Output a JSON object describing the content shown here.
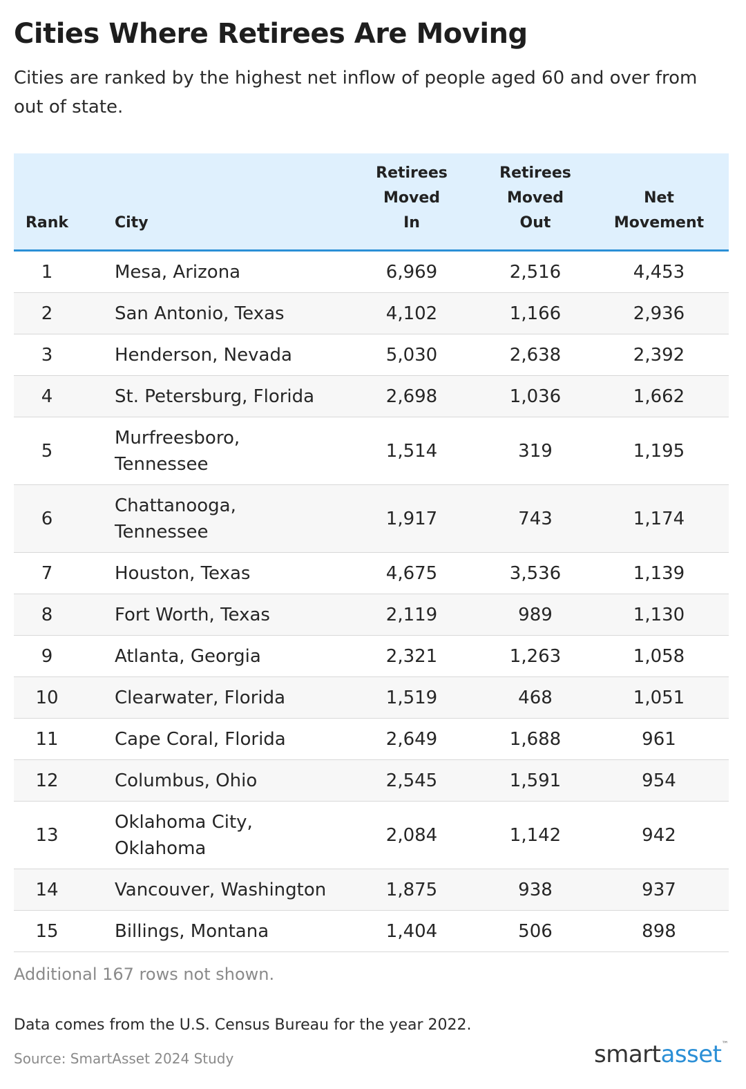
{
  "header": {
    "title": "Cities Where Retirees Are Moving",
    "subtitle": "Cities are ranked by the highest net inflow of people aged 60 and over from out of state."
  },
  "chart_data": {
    "type": "table",
    "columns": [
      {
        "key": "rank",
        "lines": [
          "Rank"
        ]
      },
      {
        "key": "city",
        "lines": [
          "City"
        ]
      },
      {
        "key": "moved_in",
        "lines": [
          "Retirees",
          "Moved",
          "In"
        ]
      },
      {
        "key": "moved_out",
        "lines": [
          "Retirees",
          "Moved",
          "Out"
        ]
      },
      {
        "key": "net",
        "lines": [
          "Net",
          "Movement"
        ]
      }
    ],
    "rows": [
      {
        "rank": "1",
        "city": [
          "Mesa, Arizona"
        ],
        "moved_in": "6,969",
        "moved_out": "2,516",
        "net": "4,453"
      },
      {
        "rank": "2",
        "city": [
          "San Antonio, Texas"
        ],
        "moved_in": "4,102",
        "moved_out": "1,166",
        "net": "2,936"
      },
      {
        "rank": "3",
        "city": [
          "Henderson, Nevada"
        ],
        "moved_in": "5,030",
        "moved_out": "2,638",
        "net": "2,392"
      },
      {
        "rank": "4",
        "city": [
          "St. Petersburg, Florida"
        ],
        "moved_in": "2,698",
        "moved_out": "1,036",
        "net": "1,662"
      },
      {
        "rank": "5",
        "city": [
          "Murfreesboro,",
          "Tennessee"
        ],
        "moved_in": "1,514",
        "moved_out": "319",
        "net": "1,195"
      },
      {
        "rank": "6",
        "city": [
          "Chattanooga,",
          "Tennessee"
        ],
        "moved_in": "1,917",
        "moved_out": "743",
        "net": "1,174"
      },
      {
        "rank": "7",
        "city": [
          "Houston, Texas"
        ],
        "moved_in": "4,675",
        "moved_out": "3,536",
        "net": "1,139"
      },
      {
        "rank": "8",
        "city": [
          "Fort Worth, Texas"
        ],
        "moved_in": "2,119",
        "moved_out": "989",
        "net": "1,130"
      },
      {
        "rank": "9",
        "city": [
          "Atlanta, Georgia"
        ],
        "moved_in": "2,321",
        "moved_out": "1,263",
        "net": "1,058"
      },
      {
        "rank": "10",
        "city": [
          "Clearwater, Florida"
        ],
        "moved_in": "1,519",
        "moved_out": "468",
        "net": "1,051"
      },
      {
        "rank": "11",
        "city": [
          "Cape Coral, Florida"
        ],
        "moved_in": "2,649",
        "moved_out": "1,688",
        "net": "961"
      },
      {
        "rank": "12",
        "city": [
          "Columbus, Ohio"
        ],
        "moved_in": "2,545",
        "moved_out": "1,591",
        "net": "954"
      },
      {
        "rank": "13",
        "city": [
          "Oklahoma City,",
          "Oklahoma"
        ],
        "moved_in": "2,084",
        "moved_out": "1,142",
        "net": "942"
      },
      {
        "rank": "14",
        "city": [
          "Vancouver, Washington"
        ],
        "moved_in": "1,875",
        "moved_out": "938",
        "net": "937"
      },
      {
        "rank": "15",
        "city": [
          "Billings, Montana"
        ],
        "moved_in": "1,404",
        "moved_out": "506",
        "net": "898"
      }
    ]
  },
  "footer": {
    "rows_note": "Additional 167 rows not shown.",
    "data_note": "Data comes from the U.S. Census Bureau for the year 2022.",
    "source": "Source: SmartAsset 2024 Study",
    "logo_smart": "smart",
    "logo_asset": "asset",
    "logo_tm": "™"
  },
  "colors": {
    "header_bg": "#dff0fd",
    "header_rule": "#2b8fd6",
    "brand_blue": "#2b8fd6",
    "stripe": "#f7f7f7"
  }
}
